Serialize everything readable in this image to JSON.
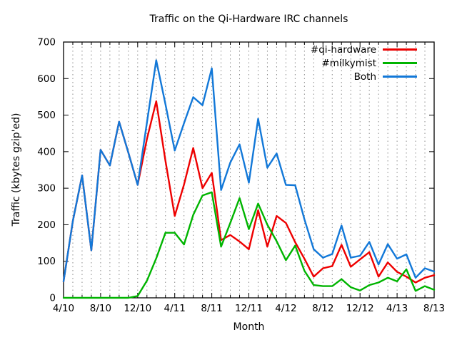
{
  "chart": {
    "title": "Traffic on the Qi-Hardware IRC channels",
    "xlabel": "Month",
    "ylabel": "Traffic (kbytes gzip'ed)"
  },
  "chart_data": {
    "type": "line",
    "title": "Traffic on the Qi-Hardware IRC channels",
    "xlabel": "Month",
    "ylabel": "Traffic (kbytes gzip'ed)",
    "x_categories": [
      "4/10",
      "5/10",
      "6/10",
      "7/10",
      "8/10",
      "9/10",
      "10/10",
      "11/10",
      "12/10",
      "1/11",
      "2/11",
      "3/11",
      "4/11",
      "5/11",
      "6/11",
      "7/11",
      "8/11",
      "9/11",
      "10/11",
      "11/11",
      "12/11",
      "1/12",
      "2/12",
      "3/12",
      "4/12",
      "5/12",
      "6/12",
      "7/12",
      "8/12",
      "9/12",
      "10/12",
      "11/12",
      "12/12",
      "1/13",
      "2/13",
      "3/13",
      "4/13",
      "5/13",
      "6/13",
      "7/13",
      "8/13"
    ],
    "x_major_tick_labels": [
      "4/10",
      "8/10",
      "12/10",
      "4/11",
      "8/11",
      "12/11",
      "4/12",
      "8/12",
      "12/12",
      "4/13",
      "8/13"
    ],
    "x_major_tick_indices": [
      0,
      4,
      8,
      12,
      16,
      20,
      24,
      28,
      32,
      36,
      40
    ],
    "ylim": [
      0,
      700
    ],
    "yticks": [
      0,
      100,
      200,
      300,
      400,
      500,
      600,
      700
    ],
    "grid": "vertical-dotted-monthly",
    "legend_position": "top-right-inside",
    "series": [
      {
        "name": "#qi-hardware",
        "color": "#ee0000",
        "values": [
          45,
          210,
          335,
          130,
          405,
          362,
          482,
          397,
          309,
          435,
          538,
          375,
          224,
          310,
          410,
          300,
          342,
          158,
          172,
          154,
          133,
          240,
          140,
          224,
          205,
          152,
          107,
          58,
          81,
          87,
          145,
          85,
          105,
          125,
          58,
          97,
          71,
          58,
          42,
          55,
          62
        ]
      },
      {
        "name": "#milkymist",
        "color": "#00b400",
        "values": [
          0,
          0,
          0,
          0,
          0,
          0,
          0,
          0,
          5,
          47,
          108,
          178,
          178,
          146,
          227,
          280,
          289,
          140,
          205,
          273,
          188,
          258,
          200,
          155,
          103,
          143,
          74,
          35,
          32,
          32,
          51,
          29,
          20,
          35,
          42,
          55,
          45,
          78,
          19,
          32,
          22
        ]
      },
      {
        "name": "Both",
        "color": "#1278d8",
        "values": [
          45,
          210,
          335,
          130,
          405,
          362,
          482,
          397,
          309,
          480,
          650,
          530,
          403,
          478,
          549,
          527,
          628,
          295,
          370,
          420,
          315,
          490,
          356,
          395,
          309,
          308,
          215,
          133,
          110,
          120,
          198,
          110,
          115,
          153,
          91,
          147,
          107,
          119,
          55,
          81,
          72
        ]
      }
    ]
  }
}
